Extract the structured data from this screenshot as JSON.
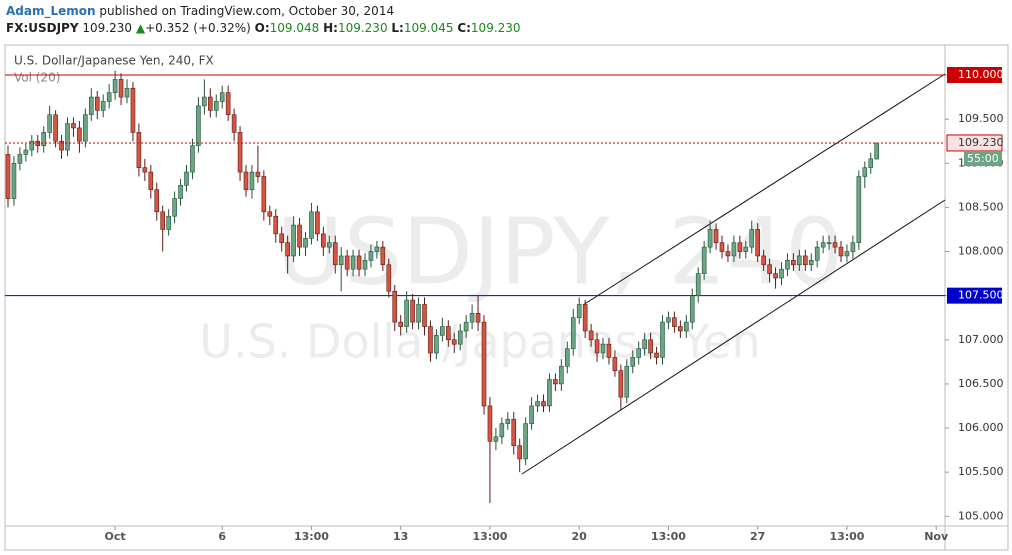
{
  "header": {
    "author": "Adam_Lemon",
    "published": "published on TradingView.com, October 30, 2014",
    "symbol": "FX:USDJPY",
    "last": "109.230",
    "change": "+0.352 (+0.32%)",
    "ohlc": [
      {
        "label": "O:",
        "value": "109.048"
      },
      {
        "label": "H:",
        "value": "109.230"
      },
      {
        "label": "L:",
        "value": "109.045"
      },
      {
        "label": "C:",
        "value": "109.230"
      }
    ]
  },
  "chart_data": {
    "type": "candlestick",
    "title": "U.S. Dollar/Japanese Yen, 240, FX",
    "indicator": "Vol (20)",
    "watermark": "USDJPY, 240",
    "watermark_subtitle": "U.S. Dollar/Japanese Yen",
    "categories": [
      null,
      null,
      null,
      null,
      null,
      null,
      null,
      null,
      null,
      null,
      null,
      null,
      null,
      null,
      null,
      null,
      null,
      null,
      "Oct",
      null,
      null,
      null,
      null,
      null,
      null,
      null,
      null,
      null,
      null,
      null,
      null,
      null,
      null,
      null,
      null,
      null,
      "6",
      null,
      null,
      null,
      null,
      null,
      null,
      null,
      null,
      null,
      null,
      null,
      null,
      null,
      null,
      "13:00",
      null,
      null,
      null,
      null,
      null,
      null,
      null,
      null,
      null,
      null,
      null,
      null,
      null,
      null,
      "13",
      null,
      null,
      null,
      null,
      null,
      null,
      null,
      null,
      null,
      null,
      null,
      null,
      null,
      null,
      "13:00",
      null,
      null,
      null,
      null,
      null,
      null,
      null,
      null,
      null,
      null,
      null,
      null,
      null,
      null,
      "20",
      null,
      null,
      null,
      null,
      null,
      null,
      null,
      null,
      null,
      null,
      null,
      null,
      null,
      null,
      "13:00",
      null,
      null,
      null,
      null,
      null,
      null,
      null,
      null,
      null,
      null,
      null,
      null,
      null,
      null,
      "27",
      null,
      null,
      null,
      null,
      null,
      null,
      null,
      null,
      null,
      null,
      null,
      null,
      null,
      null,
      "13:00",
      null,
      null,
      null,
      null,
      null,
      null,
      null,
      null,
      null,
      null,
      null,
      null,
      null,
      null,
      "Nov"
    ],
    "open": [
      109.1,
      108.6,
      109.0,
      109.1,
      109.15,
      109.25,
      109.2,
      109.35,
      109.55,
      109.25,
      109.15,
      109.45,
      109.4,
      109.25,
      109.55,
      109.75,
      109.6,
      109.7,
      109.8,
      109.95,
      109.75,
      109.85,
      109.35,
      108.95,
      108.9,
      108.7,
      108.45,
      108.25,
      108.4,
      108.6,
      108.75,
      108.9,
      109.2,
      109.65,
      109.75,
      109.6,
      109.7,
      109.8,
      109.55,
      109.35,
      108.9,
      108.7,
      108.9,
      108.85,
      108.45,
      108.4,
      108.2,
      108.1,
      107.95,
      108.3,
      108.05,
      108.15,
      108.45,
      108.2,
      108.05,
      108.1,
      107.85,
      107.95,
      107.8,
      107.95,
      107.8,
      107.9,
      108.0,
      108.05,
      107.85,
      107.55,
      107.2,
      107.15,
      107.45,
      107.2,
      107.4,
      107.15,
      106.85,
      107.05,
      107.15,
      107.0,
      106.95,
      107.1,
      107.2,
      107.3,
      107.2,
      106.25,
      105.85,
      105.9,
      106.05,
      106.1,
      105.8,
      105.65,
      106.05,
      106.25,
      106.3,
      106.25,
      106.55,
      106.5,
      106.7,
      106.9,
      107.25,
      107.4,
      107.1,
      107.0,
      106.85,
      106.95,
      106.8,
      106.65,
      106.35,
      106.7,
      106.8,
      106.9,
      107.0,
      106.85,
      106.8,
      107.2,
      107.25,
      107.15,
      107.1,
      107.2,
      107.5,
      107.75,
      108.05,
      108.25,
      108.1,
      108.0,
      107.95,
      108.1,
      108.0,
      108.05,
      108.25,
      107.95,
      107.85,
      107.75,
      107.7,
      107.8,
      107.9,
      107.85,
      107.95,
      107.85,
      107.9,
      108.05,
      108.1,
      108.1,
      108.05,
      107.95,
      108.0,
      108.1,
      108.85,
      108.95,
      109.048,
      null,
      null,
      null,
      null,
      null,
      null,
      null,
      null,
      null,
      null
    ],
    "high": [
      109.2,
      109.08,
      109.18,
      109.22,
      109.32,
      109.32,
      109.42,
      109.65,
      109.6,
      109.32,
      109.52,
      109.52,
      109.48,
      109.62,
      109.85,
      109.82,
      109.78,
      109.9,
      110.05,
      110.02,
      109.95,
      109.92,
      109.45,
      109.05,
      108.98,
      108.78,
      108.52,
      108.48,
      108.68,
      108.82,
      108.98,
      109.28,
      109.75,
      109.95,
      109.85,
      109.78,
      109.88,
      109.88,
      109.62,
      109.42,
      108.98,
      108.98,
      109.2,
      108.92,
      108.52,
      108.48,
      108.28,
      108.18,
      108.4,
      108.38,
      108.22,
      108.55,
      108.52,
      108.28,
      108.18,
      108.18,
      108.05,
      108.02,
      108.02,
      108.02,
      107.98,
      108.08,
      108.12,
      108.12,
      107.92,
      107.62,
      107.28,
      107.55,
      107.52,
      107.48,
      107.48,
      107.22,
      107.12,
      107.25,
      107.22,
      107.08,
      107.18,
      107.28,
      107.4,
      107.5,
      107.28,
      106.35,
      106.0,
      106.12,
      106.18,
      106.18,
      105.88,
      106.12,
      106.35,
      106.38,
      106.38,
      106.62,
      106.62,
      106.78,
      106.98,
      107.35,
      107.48,
      107.45,
      107.18,
      107.08,
      107.02,
      107.02,
      106.88,
      106.72,
      106.78,
      106.88,
      106.98,
      107.08,
      107.08,
      106.92,
      107.28,
      107.32,
      107.32,
      107.22,
      107.28,
      107.58,
      107.82,
      108.12,
      108.35,
      108.32,
      108.18,
      108.08,
      108.18,
      108.18,
      108.12,
      108.35,
      108.32,
      108.02,
      107.92,
      107.82,
      107.88,
      107.98,
      107.98,
      108.02,
      108.02,
      107.98,
      108.12,
      108.18,
      108.18,
      108.18,
      108.12,
      108.08,
      108.18,
      108.92,
      109.02,
      109.12,
      109.23,
      null,
      null,
      null,
      null,
      null,
      null,
      null,
      null,
      null,
      null
    ],
    "low": [
      108.5,
      108.52,
      108.92,
      109.02,
      109.08,
      109.12,
      109.12,
      109.28,
      109.18,
      109.05,
      109.08,
      109.3,
      109.12,
      109.18,
      109.48,
      109.5,
      109.52,
      109.62,
      109.72,
      109.66,
      109.68,
      109.25,
      108.85,
      108.8,
      108.6,
      108.35,
      108.0,
      108.18,
      108.32,
      108.52,
      108.68,
      108.82,
      109.12,
      109.55,
      109.52,
      109.52,
      109.62,
      109.48,
      109.25,
      108.8,
      108.62,
      108.6,
      108.78,
      108.35,
      108.3,
      108.1,
      108.0,
      107.75,
      107.88,
      107.95,
      107.95,
      108.08,
      108.12,
      107.95,
      107.98,
      107.75,
      107.55,
      107.72,
      107.72,
      107.72,
      107.72,
      107.82,
      107.92,
      107.78,
      107.48,
      107.1,
      107.05,
      107.08,
      107.12,
      107.12,
      107.05,
      106.75,
      106.78,
      106.98,
      106.92,
      106.85,
      106.88,
      107.02,
      107.12,
      107.1,
      106.15,
      105.15,
      105.75,
      105.82,
      105.98,
      105.7,
      105.5,
      105.58,
      105.98,
      106.18,
      106.18,
      106.18,
      106.42,
      106.42,
      106.62,
      106.82,
      107.18,
      107.02,
      106.92,
      106.75,
      106.78,
      106.72,
      106.58,
      106.2,
      106.28,
      106.62,
      106.72,
      106.82,
      106.78,
      106.72,
      106.72,
      107.12,
      107.08,
      107.02,
      107.02,
      107.12,
      107.42,
      107.68,
      107.98,
      108.02,
      107.92,
      107.88,
      107.88,
      107.92,
      107.92,
      107.98,
      107.88,
      107.78,
      107.65,
      107.58,
      107.62,
      107.72,
      107.78,
      107.78,
      107.78,
      107.78,
      107.82,
      107.98,
      108.02,
      107.98,
      107.88,
      107.88,
      107.92,
      108.02,
      108.72,
      108.88,
      109.045,
      null,
      null,
      null,
      null,
      null,
      null,
      null,
      null,
      null,
      null
    ],
    "close": [
      108.6,
      109.0,
      109.1,
      109.15,
      109.25,
      109.2,
      109.35,
      109.55,
      109.25,
      109.15,
      109.45,
      109.4,
      109.25,
      109.55,
      109.75,
      109.6,
      109.7,
      109.8,
      109.95,
      109.75,
      109.85,
      109.35,
      108.95,
      108.9,
      108.7,
      108.45,
      108.25,
      108.4,
      108.6,
      108.75,
      108.9,
      109.2,
      109.65,
      109.75,
      109.6,
      109.7,
      109.8,
      109.55,
      109.35,
      108.9,
      108.7,
      108.9,
      108.85,
      108.45,
      108.4,
      108.2,
      108.1,
      107.95,
      108.3,
      108.05,
      108.15,
      108.45,
      108.2,
      108.05,
      108.1,
      107.85,
      107.95,
      107.8,
      107.95,
      107.8,
      107.9,
      108.0,
      108.05,
      107.85,
      107.55,
      107.2,
      107.15,
      107.45,
      107.2,
      107.4,
      107.15,
      106.85,
      107.05,
      107.15,
      107.0,
      106.95,
      107.1,
      107.2,
      107.3,
      107.2,
      106.25,
      105.85,
      105.9,
      106.05,
      106.1,
      105.8,
      105.65,
      106.05,
      106.25,
      106.3,
      106.25,
      106.55,
      106.5,
      106.7,
      106.9,
      107.25,
      107.4,
      107.1,
      107.0,
      106.85,
      106.95,
      106.8,
      106.65,
      106.35,
      106.7,
      106.8,
      106.9,
      107.0,
      106.85,
      106.8,
      107.2,
      107.25,
      107.15,
      107.1,
      107.2,
      107.5,
      107.75,
      108.05,
      108.25,
      108.1,
      108.0,
      107.95,
      108.1,
      108.0,
      108.05,
      108.25,
      107.95,
      107.85,
      107.75,
      107.7,
      107.8,
      107.9,
      107.85,
      107.95,
      107.85,
      107.9,
      108.05,
      108.1,
      108.1,
      108.05,
      107.95,
      108.0,
      108.1,
      108.85,
      108.95,
      109.05,
      109.23,
      null,
      null,
      null,
      null,
      null,
      null,
      null,
      null,
      null,
      null
    ],
    "up_color": "#6ba583",
    "down_color": "#d75442",
    "ylim": [
      104.89,
      110.34
    ],
    "yticks": [
      {
        "value": 105,
        "label": "105.000"
      },
      {
        "value": 105.5,
        "label": "105.500"
      },
      {
        "value": 106,
        "label": "106.000"
      },
      {
        "value": 106.5,
        "label": "106.500"
      },
      {
        "value": 107,
        "label": "107.000"
      },
      {
        "value": 107.5,
        "label": "107.500"
      },
      {
        "value": 108,
        "label": "108.000"
      },
      {
        "value": 108.5,
        "label": "108.500"
      },
      {
        "value": 109,
        "label": "109.000"
      },
      {
        "value": 109.5,
        "label": "109.500"
      },
      {
        "value": 110,
        "label": "110.000"
      }
    ],
    "hlines": [
      {
        "value": 110,
        "label": "110.000",
        "color": "#cc0000"
      },
      {
        "value": 107.5,
        "label": "107.500",
        "color": "#0000cc"
      }
    ],
    "last_price": {
      "value": 109.23,
      "label": "109.230",
      "countdown": "55:00",
      "color": "#cc0000"
    }
  }
}
